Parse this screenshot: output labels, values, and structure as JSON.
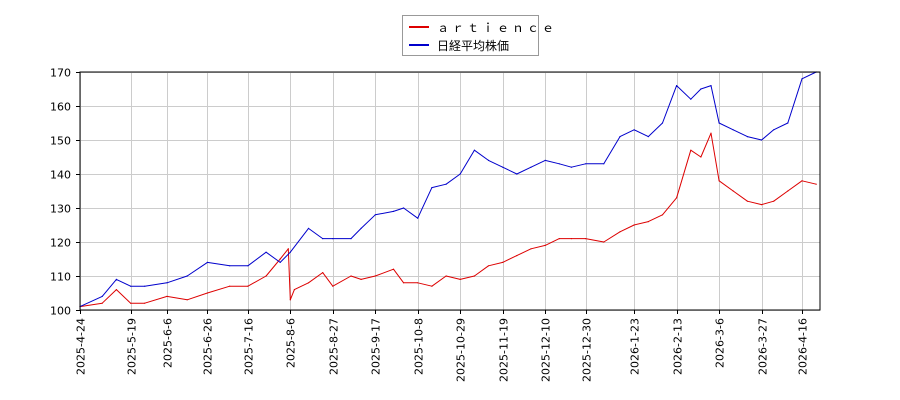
{
  "chart_data": {
    "type": "line",
    "title": "",
    "xlabel": "",
    "ylabel": "",
    "ylim": [
      100,
      170
    ],
    "yticks": [
      100,
      110,
      120,
      130,
      140,
      150,
      160,
      170
    ],
    "xticks": [
      "2025-4-24",
      "2025-5-19",
      "2025-6-6",
      "2025-6-26",
      "2025-7-16",
      "2025-8-6",
      "2025-8-27",
      "2025-9-17",
      "2025-10-8",
      "2025-10-29",
      "2025-11-19",
      "2025-12-10",
      "2025-12-30",
      "2026-1-23",
      "2026-2-13",
      "2026-3-6",
      "2026-3-27",
      "2026-4-16"
    ],
    "grid": true,
    "legend_position": "top-center",
    "colors": {
      "artience": "#dd0000",
      "nikkei": "#0000cc",
      "grid": "#cccccc",
      "axis": "#000000"
    },
    "series": [
      {
        "name": "ａｒｔｉｅｎｃｅ",
        "color": "#dd0000",
        "x": [
          "2025-4-24",
          "2025-5-5",
          "2025-5-12",
          "2025-5-19",
          "2025-5-26",
          "2025-6-6",
          "2025-6-16",
          "2025-6-26",
          "2025-7-7",
          "2025-7-16",
          "2025-7-25",
          "2025-8-1",
          "2025-8-5",
          "2025-8-6",
          "2025-8-8",
          "2025-8-15",
          "2025-8-22",
          "2025-8-27",
          "2025-9-5",
          "2025-9-10",
          "2025-9-17",
          "2025-9-26",
          "2025-10-1",
          "2025-10-8",
          "2025-10-15",
          "2025-10-22",
          "2025-10-29",
          "2025-11-5",
          "2025-11-12",
          "2025-11-19",
          "2025-11-26",
          "2025-12-3",
          "2025-12-10",
          "2025-12-17",
          "2025-12-23",
          "2025-12-30",
          "2026-1-8",
          "2026-1-16",
          "2026-1-23",
          "2026-1-30",
          "2026-2-6",
          "2026-2-13",
          "2026-2-20",
          "2026-2-25",
          "2026-3-2",
          "2026-3-6",
          "2026-3-13",
          "2026-3-20",
          "2026-3-27",
          "2026-4-2",
          "2026-4-9",
          "2026-4-16",
          "2026-4-23"
        ],
        "y": [
          101,
          102,
          106,
          102,
          102,
          104,
          103,
          105,
          107,
          107,
          110,
          115,
          118,
          103,
          106,
          108,
          111,
          107,
          110,
          109,
          110,
          112,
          108,
          108,
          107,
          110,
          109,
          110,
          113,
          114,
          116,
          118,
          119,
          121,
          121,
          121,
          120,
          123,
          125,
          126,
          128,
          133,
          147,
          145,
          152,
          138,
          135,
          132,
          131,
          132,
          135,
          138,
          137
        ]
      },
      {
        "name": "日経平均株価",
        "color": "#0000cc",
        "x": [
          "2025-4-24",
          "2025-5-5",
          "2025-5-12",
          "2025-5-19",
          "2025-5-26",
          "2025-6-6",
          "2025-6-16",
          "2025-6-26",
          "2025-7-7",
          "2025-7-16",
          "2025-7-25",
          "2025-8-1",
          "2025-8-6",
          "2025-8-15",
          "2025-8-22",
          "2025-8-27",
          "2025-9-5",
          "2025-9-10",
          "2025-9-17",
          "2025-9-26",
          "2025-10-1",
          "2025-10-8",
          "2025-10-15",
          "2025-10-22",
          "2025-10-29",
          "2025-11-5",
          "2025-11-12",
          "2025-11-19",
          "2025-11-26",
          "2025-12-3",
          "2025-12-10",
          "2025-12-17",
          "2025-12-23",
          "2025-12-30",
          "2026-1-8",
          "2026-1-16",
          "2026-1-23",
          "2026-1-30",
          "2026-2-6",
          "2026-2-13",
          "2026-2-20",
          "2026-2-25",
          "2026-3-2",
          "2026-3-6",
          "2026-3-13",
          "2026-3-20",
          "2026-3-27",
          "2026-4-2",
          "2026-4-9",
          "2026-4-16",
          "2026-4-23"
        ],
        "y": [
          101,
          104,
          109,
          107,
          107,
          108,
          110,
          114,
          113,
          113,
          117,
          114,
          117,
          124,
          121,
          121,
          121,
          124,
          128,
          129,
          130,
          127,
          136,
          137,
          140,
          147,
          144,
          142,
          140,
          142,
          144,
          143,
          142,
          143,
          143,
          151,
          153,
          151,
          155,
          166,
          162,
          165,
          166,
          155,
          153,
          151,
          150,
          153,
          155,
          168,
          170
        ]
      }
    ]
  }
}
